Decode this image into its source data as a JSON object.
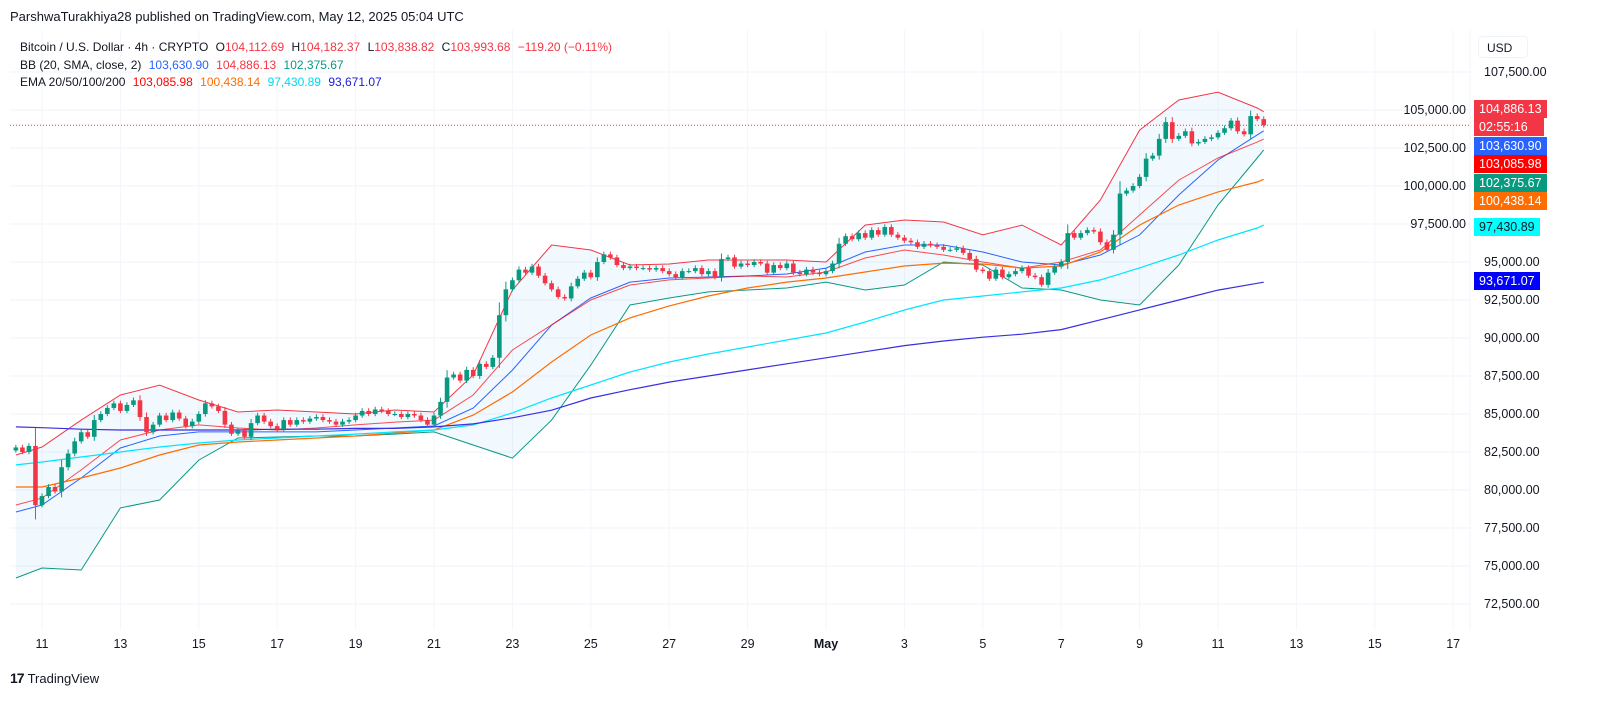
{
  "header": {
    "published": "ParshwaTurakhiya28 published on TradingView.com, May 12, 2025 05:04 UTC"
  },
  "legend": {
    "symbol": "Bitcoin / U.S. Dollar · 4h · CRYPTO",
    "o_label": "O",
    "o": "104,112.69",
    "h_label": "H",
    "h": "104,182.37",
    "l_label": "L",
    "l": "103,838.82",
    "c_label": "C",
    "c": "103,993.68",
    "change": "−119.20 (−0.11%)",
    "bb_label": "BB (20, SMA, close, 2)",
    "bb_basis": "103,630.90",
    "bb_upper": "104,886.13",
    "bb_lower": "102,375.67",
    "ema_label": "EMA 20/50/100/200",
    "ema20": "103,085.98",
    "ema50": "100,438.14",
    "ema100": "97,430.89",
    "ema200": "93,671.07"
  },
  "price_axis": {
    "currency": "USD",
    "ticks": [
      "107,500.00",
      "105,000.00",
      "102,500.00",
      "100,000.00",
      "97,500.00",
      "95,000.00",
      "92,500.00",
      "90,000.00",
      "87,500.00",
      "85,000.00",
      "82,500.00",
      "80,000.00",
      "77,500.00",
      "75,000.00",
      "72,500.00"
    ],
    "countdown": "02:55:16"
  },
  "time_axis": {
    "ticks": [
      "11",
      "13",
      "15",
      "17",
      "19",
      "21",
      "23",
      "25",
      "27",
      "29",
      "May",
      "3",
      "5",
      "7",
      "9",
      "11",
      "13",
      "15",
      "17"
    ]
  },
  "colors": {
    "up": "#089981",
    "down": "#f23645",
    "bb_basis": "#2962ff",
    "bb_upper": "#f23645",
    "bb_lower": "#089981",
    "ema20": "#ff0000",
    "ema50": "#ff6d00",
    "ema100": "#00e5ff",
    "ema200": "#3a2ee0"
  },
  "footer": {
    "brand": "TradingView"
  },
  "chart_data": {
    "type": "candlestick",
    "symbol": "Bitcoin / U.S. Dollar",
    "interval": "4h",
    "ylim": [
      71500,
      110000
    ],
    "xlim": [
      "2025-04-10T04:00",
      "2025-05-18T00:00"
    ],
    "grid": true,
    "legend": "top-left",
    "candles": {
      "start": "2025-04-10T08:00",
      "first_open": 82600,
      "close": [
        82800,
        82500,
        82900,
        79000,
        79600,
        80200,
        79900,
        81500,
        82400,
        83200,
        83800,
        83500,
        84600,
        85000,
        85400,
        85700,
        85200,
        85600,
        85900,
        84800,
        83800,
        84300,
        84900,
        84600,
        85100,
        84700,
        84200,
        84500,
        85000,
        85700,
        85500,
        85200,
        84300,
        83700,
        83900,
        83500,
        84400,
        84900,
        84500,
        84200,
        84000,
        84600,
        84300,
        84600,
        84500,
        84700,
        84800,
        84600,
        84500,
        84300,
        84500,
        84600,
        84900,
        85200,
        85000,
        85300,
        85200,
        85000,
        85000,
        84800,
        85000,
        84900,
        84600,
        84300,
        84900,
        85800,
        87400,
        87600,
        87200,
        87900,
        87500,
        88300,
        88100,
        88700,
        91500,
        93200,
        93800,
        94500,
        94300,
        94700,
        94100,
        93600,
        93200,
        92700,
        92600,
        93400,
        93900,
        94300,
        94000,
        95000,
        95500,
        95300,
        94800,
        94600,
        94700,
        94600,
        94600,
        94500,
        94600,
        94400,
        94200,
        94000,
        94400,
        94400,
        94600,
        94200,
        94400,
        94000,
        95200,
        95300,
        94700,
        94900,
        94800,
        95000,
        94900,
        94300,
        94800,
        94600,
        94900,
        94300,
        94200,
        94500,
        94300,
        94200,
        94400,
        94900,
        96200,
        96700,
        96500,
        96900,
        96600,
        97100,
        96800,
        97300,
        96800,
        96600,
        96400,
        96300,
        96000,
        96200,
        96100,
        96000,
        95800,
        95800,
        95900,
        95600,
        95200,
        94500,
        94400,
        93900,
        94500,
        94000,
        94200,
        94400,
        94600,
        94100,
        94000,
        93500,
        94300,
        94700,
        95000,
        96900,
        96600,
        96900,
        97100,
        97000,
        96300,
        95800,
        96800,
        99500,
        99700,
        100000,
        100600,
        101800,
        102000,
        103100,
        104200,
        103100,
        103300,
        103600,
        102800,
        102900,
        103100,
        103200,
        103500,
        103800,
        104300,
        103600,
        103400,
        104600,
        104400,
        103993.68
      ]
    },
    "indicator_dates": [
      "2025-04-10T08:00",
      "2025-04-11",
      "2025-04-12",
      "2025-04-13",
      "2025-04-14",
      "2025-04-15",
      "2025-04-16",
      "2025-04-17",
      "2025-04-18",
      "2025-04-19",
      "2025-04-20",
      "2025-04-21",
      "2025-04-22",
      "2025-04-23",
      "2025-04-24",
      "2025-04-25",
      "2025-04-26",
      "2025-04-27",
      "2025-04-28",
      "2025-04-29",
      "2025-04-30",
      "2025-05-01",
      "2025-05-02",
      "2025-05-03",
      "2025-05-04",
      "2025-05-05",
      "2025-05-06",
      "2025-05-07",
      "2025-05-08",
      "2025-05-09",
      "2025-05-10",
      "2025-05-11",
      "2025-05-12",
      "2025-05-12T04:00"
    ],
    "series": [
      {
        "name": "BB upper",
        "key": "bb_upper",
        "values": [
          82300,
          82830,
          84600,
          86250,
          86900,
          85920,
          85130,
          85260,
          85130,
          85000,
          85260,
          85130,
          87570,
          93160,
          96120,
          95790,
          94800,
          94870,
          95130,
          95130,
          95130,
          95000,
          97430,
          97760,
          97630,
          96780,
          97430,
          96120,
          99080,
          103680,
          105660,
          106180,
          105130,
          104886.13
        ]
      },
      {
        "name": "BB lower",
        "key": "bb_lower",
        "values": [
          74210,
          74870,
          74740,
          78820,
          79340,
          81970,
          83420,
          83490,
          83550,
          83550,
          83680,
          83820,
          82960,
          82100,
          84600,
          88220,
          92170,
          92630,
          93030,
          93160,
          93290,
          93680,
          93160,
          93490,
          95000,
          94800,
          93290,
          93160,
          92500,
          92170,
          94800,
          98750,
          101840,
          102375.67
        ]
      },
      {
        "name": "BB basis",
        "key": "bb_basis",
        "values": [
          78550,
          79010,
          80790,
          82760,
          83550,
          83820,
          83820,
          83820,
          83820,
          83950,
          84080,
          84210,
          85390,
          87890,
          90850,
          92630,
          93680,
          93950,
          94010,
          94080,
          94210,
          94600,
          95660,
          96120,
          96120,
          95660,
          95000,
          94800,
          95460,
          96780,
          99410,
          101710,
          103360,
          103630.9
        ]
      },
      {
        "name": "EMA 20",
        "key": "ema20",
        "values": [
          79010,
          79470,
          81320,
          83290,
          83950,
          84280,
          84080,
          83950,
          84080,
          84280,
          84470,
          84600,
          86250,
          89210,
          90860,
          92500,
          93490,
          93820,
          93950,
          94080,
          94010,
          94340,
          95260,
          95790,
          95460,
          95000,
          94600,
          95000,
          95790,
          98090,
          100390,
          101840,
          102890,
          103085.98
        ]
      },
      {
        "name": "EMA 50",
        "key": "ema50",
        "values": [
          80200,
          80200,
          80790,
          81450,
          82300,
          82960,
          83160,
          83290,
          83420,
          83550,
          83750,
          83950,
          84930,
          86450,
          88420,
          90200,
          91320,
          92110,
          92760,
          93290,
          93680,
          93950,
          94340,
          94740,
          94930,
          94870,
          94600,
          94740,
          95660,
          97430,
          98750,
          99610,
          100260,
          100438.14
        ]
      },
      {
        "name": "EMA 100",
        "key": "ema100",
        "values": [
          81650,
          81840,
          82170,
          82500,
          82830,
          83090,
          83290,
          83420,
          83550,
          83680,
          83820,
          83950,
          84280,
          85070,
          86050,
          86910,
          87760,
          88420,
          88950,
          89410,
          89870,
          90330,
          91050,
          91840,
          92500,
          92760,
          93030,
          93290,
          93820,
          94610,
          95460,
          96450,
          97240,
          97430.89
        ]
      },
      {
        "name": "EMA 200",
        "key": "ema200",
        "values": [
          84150,
          84100,
          84000,
          83950,
          83950,
          83950,
          83950,
          84000,
          84000,
          84050,
          84050,
          84150,
          84350,
          84750,
          85250,
          86050,
          86600,
          87100,
          87500,
          87900,
          88300,
          88700,
          89100,
          89500,
          89800,
          90050,
          90250,
          90550,
          91200,
          91850,
          92500,
          93150,
          93600,
          93671.07
        ]
      }
    ]
  }
}
